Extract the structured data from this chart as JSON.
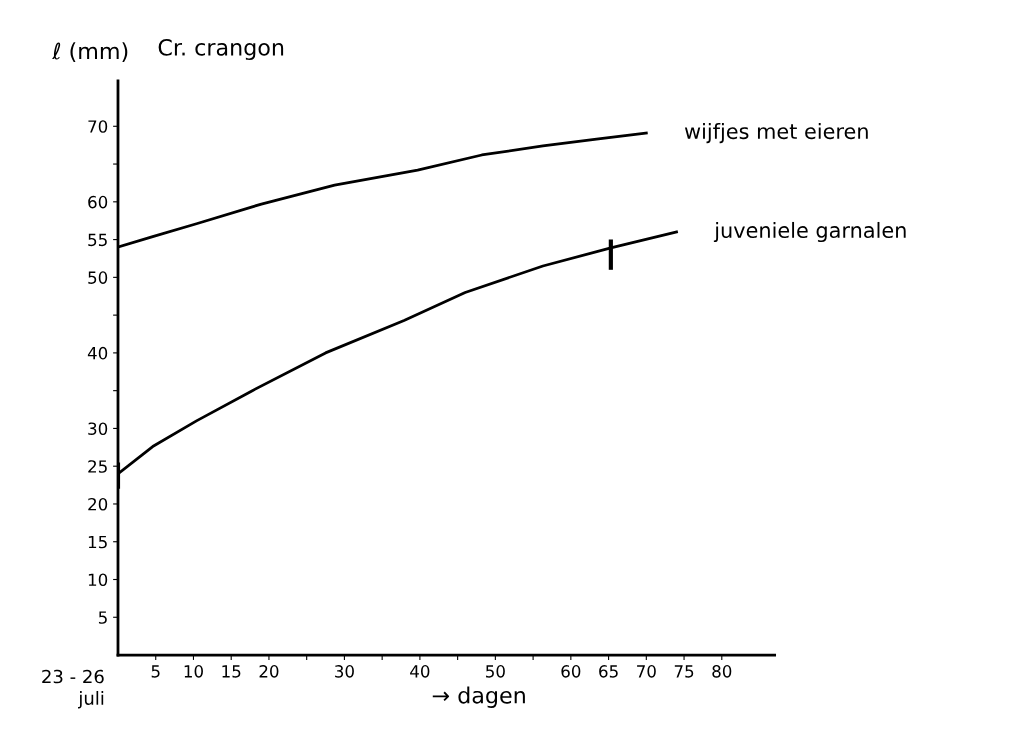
{
  "chart_data": {
    "type": "line",
    "title": "Cr. crangon",
    "ylabel": "ℓ (mm)",
    "xlabel": "→ dagen",
    "xlim": [
      0,
      87
    ],
    "ylim": [
      0,
      76
    ],
    "annotations": [
      "23 - 26\njuli"
    ],
    "xticks": [
      5,
      10,
      15,
      20,
      {
        "value": 25,
        "label": null
      },
      30,
      {
        "value": 35,
        "label": null
      },
      40,
      {
        "value": 45,
        "label": null
      },
      50,
      {
        "value": 55,
        "label": null
      },
      60,
      65,
      70,
      75,
      80
    ],
    "yticks": [
      5,
      10,
      15,
      20,
      25,
      30,
      {
        "value": 35,
        "label": null
      },
      40,
      {
        "value": 45,
        "label": null
      },
      50,
      55,
      60,
      {
        "value": 65,
        "label": null
      },
      70
    ],
    "grid": false,
    "legend": false,
    "marker": "none",
    "line_style": "solid",
    "series": [
      {
        "name": "wijfjes met eieren",
        "color": "#000000",
        "x": [
          0,
          4.6,
          10.4,
          19,
          28.7,
          39.7,
          48.2,
          56.3,
          63.4,
          70
        ],
        "values": [
          54,
          55.4,
          57.1,
          59.7,
          62.2,
          64.2,
          66.2,
          67.4,
          68.3,
          69.1
        ]
      },
      {
        "name": "juveniele garnalen",
        "color": "#000000",
        "x": [
          0,
          4.6,
          10.4,
          17.8,
          27.5,
          37.9,
          46,
          56.3,
          65.3,
          74
        ],
        "values": [
          24,
          27.6,
          31,
          35,
          40,
          44.3,
          48,
          51.5,
          53.9,
          56
        ],
        "errors": [
          [
            22,
            25.5
          ],
          null,
          null,
          null,
          null,
          null,
          null,
          null,
          [
            51,
            55
          ],
          null
        ]
      }
    ]
  }
}
